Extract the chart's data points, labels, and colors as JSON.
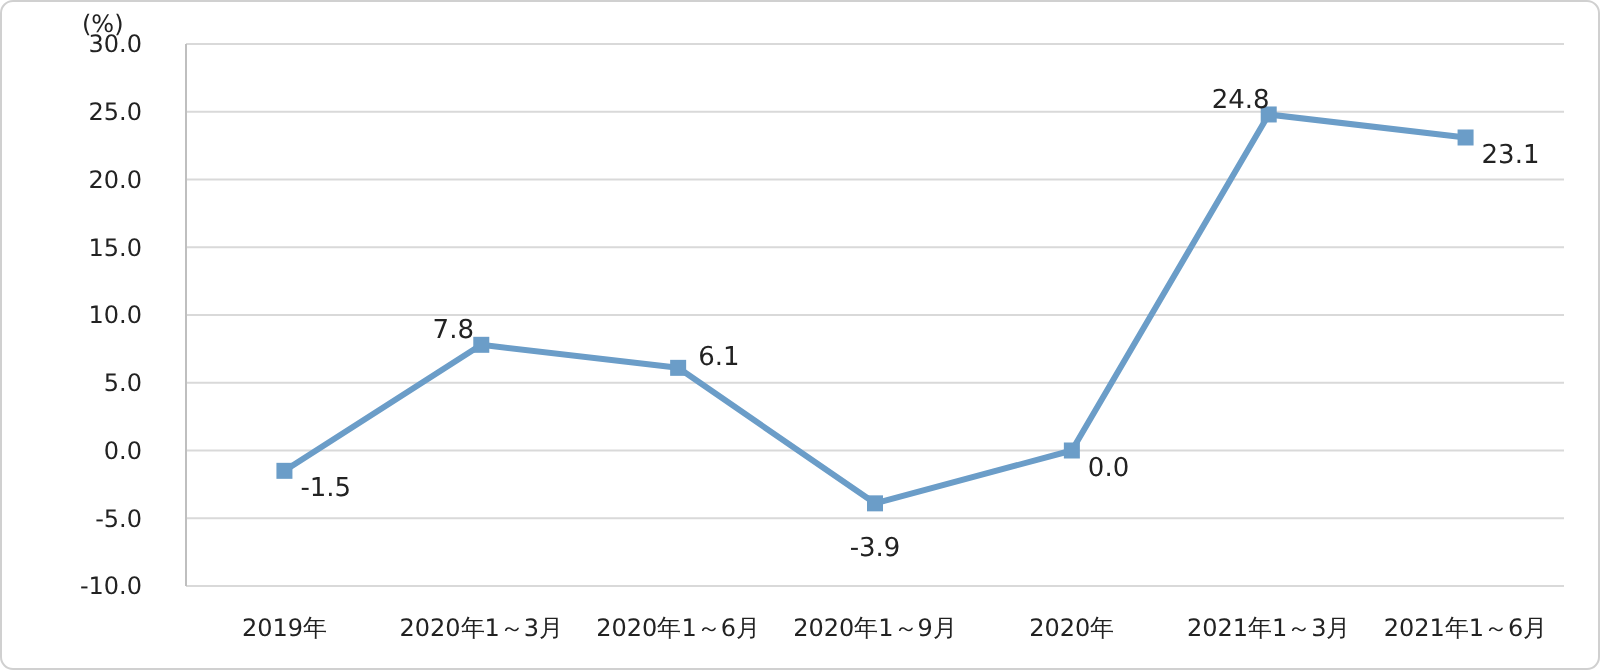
{
  "chart_data": {
    "type": "line",
    "ylabel": "(%)",
    "categories": [
      "2019年",
      "2020年1～3月",
      "2020年1～6月",
      "2020年1～9月",
      "2020年",
      "2021年1～3月",
      "2021年1～6月"
    ],
    "series": [
      {
        "color": "#6b9dc8",
        "values": [
          -1.5,
          7.8,
          6.1,
          -3.9,
          0.0,
          24.8,
          23.1
        ],
        "value_labels": [
          "-1.5",
          "7.8",
          "6.1",
          "-3.9",
          "0.0",
          "24.8",
          "23.1"
        ]
      }
    ],
    "ylim": [
      -10,
      30
    ],
    "yticks": [
      {
        "value": -10,
        "label": "-10.0"
      },
      {
        "value": -5,
        "label": "-5.0"
      },
      {
        "value": 0,
        "label": "0.0"
      },
      {
        "value": 5,
        "label": "5.0"
      },
      {
        "value": 10,
        "label": "10.0"
      },
      {
        "value": 15,
        "label": "15.0"
      },
      {
        "value": 20,
        "label": "20.0"
      },
      {
        "value": 25,
        "label": "25.0"
      },
      {
        "value": 30,
        "label": "30.0"
      }
    ],
    "grid": "y",
    "marker": "square",
    "line_style": "solid"
  }
}
